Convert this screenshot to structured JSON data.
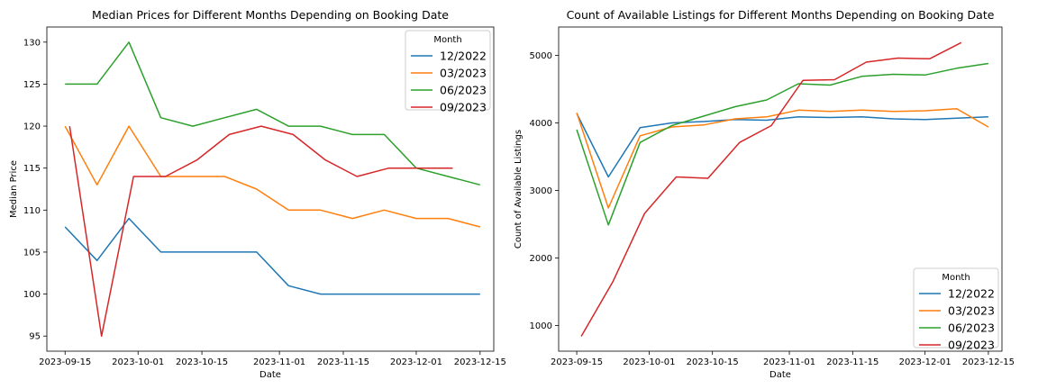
{
  "chart_data": [
    {
      "type": "line",
      "title": "Median Prices for Different Months Depending on Booking Date",
      "xlabel": "Date",
      "ylabel": "Median Price",
      "x_ticks": [
        "2023-09-15",
        "2023-10-01",
        "2023-10-15",
        "2023-11-01",
        "2023-11-15",
        "2023-12-01",
        "2023-12-15"
      ],
      "y_ticks": [
        95,
        100,
        105,
        110,
        115,
        120,
        125,
        130
      ],
      "ylim": [
        93.2,
        131.8
      ],
      "xlim": [
        "2023-09-11",
        "2023-12-18"
      ],
      "legend": {
        "title": "Month",
        "position": "top-right"
      },
      "series": [
        {
          "name": "12/2022",
          "color": "#1f77b4",
          "points": [
            [
              "2023-09-15",
              108
            ],
            [
              "2023-09-22",
              104
            ],
            [
              "2023-09-29",
              109
            ],
            [
              "2023-10-06",
              105
            ],
            [
              "2023-10-13",
              105
            ],
            [
              "2023-10-20",
              105
            ],
            [
              "2023-10-27",
              105
            ],
            [
              "2023-11-03",
              101
            ],
            [
              "2023-11-10",
              100
            ],
            [
              "2023-11-17",
              100
            ],
            [
              "2023-11-24",
              100
            ],
            [
              "2023-12-01",
              100
            ],
            [
              "2023-12-08",
              100
            ],
            [
              "2023-12-15",
              100
            ]
          ]
        },
        {
          "name": "03/2023",
          "color": "#ff7f0e",
          "points": [
            [
              "2023-09-15",
              120
            ],
            [
              "2023-09-22",
              113
            ],
            [
              "2023-09-29",
              120
            ],
            [
              "2023-10-06",
              114
            ],
            [
              "2023-10-13",
              114
            ],
            [
              "2023-10-20",
              114
            ],
            [
              "2023-10-27",
              112.5
            ],
            [
              "2023-11-03",
              110
            ],
            [
              "2023-11-10",
              110
            ],
            [
              "2023-11-17",
              109
            ],
            [
              "2023-11-24",
              110
            ],
            [
              "2023-12-01",
              109
            ],
            [
              "2023-12-08",
              109
            ],
            [
              "2023-12-15",
              108
            ]
          ]
        },
        {
          "name": "06/2023",
          "color": "#2ca02c",
          "points": [
            [
              "2023-09-15",
              125
            ],
            [
              "2023-09-22",
              125
            ],
            [
              "2023-09-29",
              130
            ],
            [
              "2023-10-06",
              121
            ],
            [
              "2023-10-13",
              120
            ],
            [
              "2023-10-20",
              121
            ],
            [
              "2023-10-27",
              122
            ],
            [
              "2023-11-03",
              120
            ],
            [
              "2023-11-10",
              120
            ],
            [
              "2023-11-17",
              119
            ],
            [
              "2023-11-24",
              119
            ],
            [
              "2023-12-01",
              115
            ],
            [
              "2023-12-15",
              113
            ]
          ]
        },
        {
          "name": "09/2023",
          "color": "#d62728",
          "points": [
            [
              "2023-09-16",
              120
            ],
            [
              "2023-09-23",
              95
            ],
            [
              "2023-09-30",
              114
            ],
            [
              "2023-10-07",
              114
            ],
            [
              "2023-10-14",
              116
            ],
            [
              "2023-10-21",
              119
            ],
            [
              "2023-10-28",
              120
            ],
            [
              "2023-11-04",
              119
            ],
            [
              "2023-11-11",
              116
            ],
            [
              "2023-11-18",
              114
            ],
            [
              "2023-11-25",
              115
            ],
            [
              "2023-12-02",
              115
            ],
            [
              "2023-12-09",
              115
            ]
          ]
        }
      ]
    },
    {
      "type": "line",
      "title": "Count of Available Listings for Different Months Depending on Booking Date",
      "xlabel": "Date",
      "ylabel": "Count of Available Listings",
      "x_ticks": [
        "2023-09-15",
        "2023-10-01",
        "2023-10-15",
        "2023-11-01",
        "2023-11-15",
        "2023-12-01",
        "2023-12-15"
      ],
      "y_ticks": [
        1000,
        2000,
        3000,
        4000,
        5000
      ],
      "ylim": [
        620,
        5420
      ],
      "xlim": [
        "2023-09-11",
        "2023-12-18"
      ],
      "legend": {
        "title": "Month",
        "position": "bottom-right"
      },
      "series": [
        {
          "name": "12/2022",
          "color": "#1f77b4",
          "points": [
            [
              "2023-09-15",
              4140
            ],
            [
              "2023-09-22",
              3200
            ],
            [
              "2023-09-29",
              3930
            ],
            [
              "2023-10-06",
              4000
            ],
            [
              "2023-10-13",
              4020
            ],
            [
              "2023-10-20",
              4050
            ],
            [
              "2023-10-27",
              4040
            ],
            [
              "2023-11-03",
              4090
            ],
            [
              "2023-11-10",
              4080
            ],
            [
              "2023-11-17",
              4090
            ],
            [
              "2023-11-24",
              4060
            ],
            [
              "2023-12-01",
              4050
            ],
            [
              "2023-12-08",
              4070
            ],
            [
              "2023-12-15",
              4090
            ]
          ]
        },
        {
          "name": "03/2023",
          "color": "#ff7f0e",
          "points": [
            [
              "2023-09-15",
              4150
            ],
            [
              "2023-09-22",
              2740
            ],
            [
              "2023-09-29",
              3810
            ],
            [
              "2023-10-06",
              3940
            ],
            [
              "2023-10-13",
              3970
            ],
            [
              "2023-10-20",
              4060
            ],
            [
              "2023-10-27",
              4090
            ],
            [
              "2023-11-03",
              4190
            ],
            [
              "2023-11-10",
              4170
            ],
            [
              "2023-11-17",
              4190
            ],
            [
              "2023-11-24",
              4170
            ],
            [
              "2023-12-01",
              4180
            ],
            [
              "2023-12-08",
              4210
            ],
            [
              "2023-12-15",
              3940
            ]
          ]
        },
        {
          "name": "06/2023",
          "color": "#2ca02c",
          "points": [
            [
              "2023-09-15",
              3900
            ],
            [
              "2023-09-22",
              2490
            ],
            [
              "2023-09-29",
              3710
            ],
            [
              "2023-10-06",
              3960
            ],
            [
              "2023-10-13",
              4100
            ],
            [
              "2023-10-20",
              4240
            ],
            [
              "2023-10-27",
              4340
            ],
            [
              "2023-11-03",
              4580
            ],
            [
              "2023-11-10",
              4560
            ],
            [
              "2023-11-17",
              4690
            ],
            [
              "2023-11-24",
              4720
            ],
            [
              "2023-12-01",
              4710
            ],
            [
              "2023-12-08",
              4810
            ],
            [
              "2023-12-15",
              4880
            ]
          ]
        },
        {
          "name": "09/2023",
          "color": "#d62728",
          "points": [
            [
              "2023-09-16",
              840
            ],
            [
              "2023-09-23",
              1650
            ],
            [
              "2023-09-30",
              2660
            ],
            [
              "2023-10-07",
              3200
            ],
            [
              "2023-10-14",
              3180
            ],
            [
              "2023-10-21",
              3710
            ],
            [
              "2023-10-28",
              3960
            ],
            [
              "2023-11-04",
              4630
            ],
            [
              "2023-11-11",
              4640
            ],
            [
              "2023-11-18",
              4900
            ],
            [
              "2023-11-25",
              4960
            ],
            [
              "2023-12-02",
              4950
            ],
            [
              "2023-12-09",
              5190
            ]
          ]
        }
      ]
    }
  ]
}
